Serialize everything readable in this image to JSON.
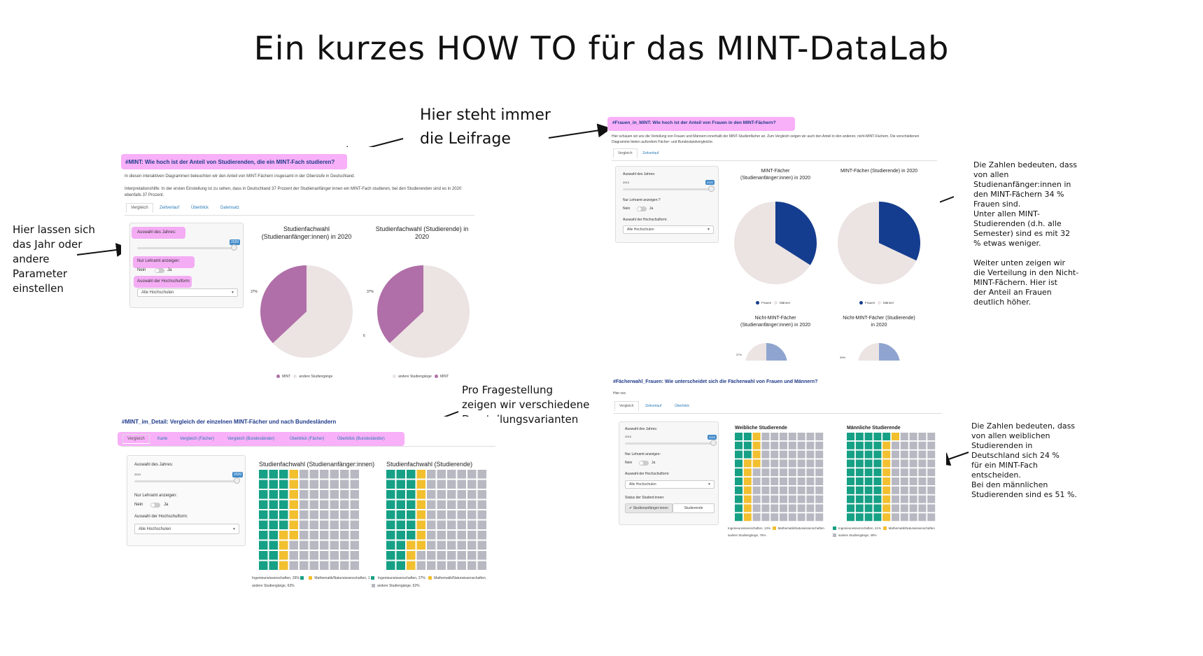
{
  "title": "Ein kurzes HOW TO für das MINT-DataLab",
  "notes": {
    "leitfrage": "Hier steht immer\ndie Leifrage",
    "parameter": "Hier lassen sich\ndas Jahr oder\nandere\nParameter\neinstellen",
    "varianten": "Pro Fragestellung\nzeigen wir verschiedene\nDarstellungsvarianten",
    "frauen": "Die Zahlen bedeuten, dass\nvon allen\nStudienanfänger:innen in\nden MINT-Fächern 34 %\nFrauen sind.\nUnter allen MINT-\nStudierenden (d.h. alle\nSemester) sind es mit 32\n% etwas weniger.\n\nWeiter unten zeigen wir\ndie Verteilung in den Nicht-\nMINT-Fächern. Hier ist\nder Anteil an Frauen\ndeutlich höher.",
    "faecherwahl": "Die Zahlen bedeuten, dass\nvon allen weiblichen\nStudierenden in\nDeutschland sich 24 %\nfür ein MINT-Fach\nentscheiden.\nBei den männlichen\nStudierenden sind es 51 %."
  },
  "panel1": {
    "question": "#MINT: Wie hoch ist der Anteil von Studierenden, die ein MINT-Fach studieren?",
    "intro": "In diesen interaktiven Diagrammen beleuchten wir den Anteil von MINT-Fächern insgesamt in der Oberstufe in Deutschland.",
    "help": "Interpretationshilfe: In der ersten Einstellung ist zu sehen, dass in Deutschland 37 Prozent der Studienanfänger:innen ein MINT-Fach studieren, bei den Studierenden sind es in 2020 ebenfalls 37 Prozent.",
    "tabs": [
      "Vergleich",
      "Zeitverlauf",
      "Überblick",
      "Datensatz"
    ],
    "year_label": "Auswahl des Jahres:",
    "year_min": "2013",
    "year_value": "2020",
    "lehramt_label": "Nur Lehramt anzeigen:",
    "no": "Nein",
    "yes": "Ja",
    "hs_label": "Auswahl der Hochschulform",
    "hs_value": "Alle Hochschulen",
    "chart1_title": "Studienfachwahl\n(Studienanfänger:innen) in 2020",
    "chart2_title": "Studienfachwahl (Studierende) in\n2020",
    "pct": "37%",
    "small_val": "6",
    "legend_mint": "MINT",
    "legend_andere": "andere Studiengänge"
  },
  "panel2": {
    "question": "#Frauen_in_MINT: Wie hoch ist der Anteil von Frauen in den MINT-Fächern?",
    "intro": "Hier schauen wir uns die Verteilung von Frauen und Männern innerhalb der MINT-Studienfächer an. Zum Vergleich zeigen wir auch den Anteil in den anderen, nicht-MINT-Fächern. Die verschiedenen Diagramme bieten außerdem Fächer- und Bundeslandvergleiche.",
    "tabs": [
      "Vergleich",
      "Zeitverlauf"
    ],
    "year_label": "Auswahl des Jahres:",
    "year_min": "2013",
    "year_value": "2020",
    "lehramt_label": "Nur Lehramt anzeigen:?",
    "no": "Nein",
    "yes": "Ja",
    "hs_label": "Auswahl der Hochschulform:",
    "hs_value": "Alle Hochschulen",
    "c1": "MINT-Fächer\n(Studienanfänger:innen) in 2020",
    "c2": "MINT-Fächer (Studierende) in 2020",
    "c3": "Nicht-MINT-Fächer\n(Studienanfänger:innen) in 2020",
    "c4": "Nicht-MINT-Fächer (Studierende)\nin 2020",
    "legend_frauen": "Frauen",
    "legend_maenner": "Männer",
    "p3": "37%",
    "p4": "39%"
  },
  "panel3": {
    "question": "#MINT_im_Detail: Vergleich der einzelnen MINT-Fächer und nach Bundesländern",
    "tabs": [
      "Vergleich",
      "Karte",
      "Vergleich (Fächer)",
      "Vergleich (Bundesländer)",
      "Überblick (Fächer)",
      "Überblick (Bundesländer)"
    ],
    "year_label": "Auswahl des Jahres:",
    "year_min": "2013",
    "year_value": "2020",
    "lehramt_label": "Nur Lehramt anzeigen:",
    "no": "Nein",
    "yes": "Ja",
    "hs_label": "Auswahl der Hochschulform:",
    "hs_value": "Alle Hochschulen",
    "w1_title": "Studienfachwahl (Studienanfänger:innen)",
    "w2_title": "Studienfachwahl (Studierende)",
    "w1_leg": [
      "Ingenieurwissenschaften, 26%",
      "Mathematik/Naturwissenschaften, 1",
      "andere Studiengänge, 63%"
    ],
    "w2_leg": [
      "Ingenieurwissenschaften, 27%",
      "Mathematik/Naturwissenschaften,",
      "andere Studiengänge, 62%"
    ]
  },
  "panel4": {
    "question": "#Fächerwahl_Frauen: Wie unterscheidet sich die Fächerwahl von Frauen und Männern?",
    "intro": "Hier xxx",
    "tabs": [
      "Vergleich",
      "Zeitverlauf",
      "Überblick"
    ],
    "year_label": "Auswahl des Jahres:",
    "year_min": "2013",
    "year_value": "2020",
    "lehramt_label": "Nur Lehramt anzeigen:",
    "no": "Nein",
    "yes": "Ja",
    "hs_label": "Auswahl der Hochschulform:",
    "hs_value": "Alle Hochschulen",
    "status_label": "Status der Student:innen:",
    "status_a": "✔ Studienanfänger:innen",
    "status_b": "Studierende",
    "w1_title": "Weibliche Studierende",
    "w2_title": "Männliche Studierende",
    "w1_leg": [
      "Ingenieurwissenschaften, 13%",
      "Mathematik/Naturwissenschaften",
      "andere Studiengänge, 76%"
    ],
    "w2_leg": [
      "Ingenieurwissenschaften, 41%",
      "Mathematik/Naturwissenschaften",
      "andere Studiengänge, 49%"
    ]
  },
  "colors": {
    "mint_purple": "#b06fa8",
    "andere": "#ece3e3",
    "frauen_blue": "#143d8f",
    "nicht_blue": "#8fa5d0",
    "green": "#16a085",
    "yellow": "#f2bf2f",
    "grey": "#b8b8c2",
    "highlight": "#f050f0"
  },
  "chart_data": [
    {
      "type": "pie",
      "title": "Studienfachwahl (Studienanfänger:innen) in 2020",
      "categories": [
        "MINT",
        "andere Studiengänge"
      ],
      "values": [
        37,
        63
      ]
    },
    {
      "type": "pie",
      "title": "Studienfachwahl (Studierende) in 2020",
      "categories": [
        "MINT",
        "andere Studiengänge"
      ],
      "values": [
        37,
        63
      ]
    },
    {
      "type": "pie",
      "title": "MINT-Fächer (Studienanfänger:innen) in 2020",
      "categories": [
        "Frauen",
        "Männer"
      ],
      "values": [
        34,
        66
      ]
    },
    {
      "type": "pie",
      "title": "MINT-Fächer (Studierende) in 2020",
      "categories": [
        "Frauen",
        "Männer"
      ],
      "values": [
        32,
        68
      ]
    },
    {
      "type": "waffle",
      "title": "Studienfachwahl (Studienanfänger:innen)",
      "categories": [
        "Ingenieurwissenschaften",
        "Mathematik/Naturwissenschaften",
        "andere Studiengänge"
      ],
      "values": [
        26,
        11,
        63
      ]
    },
    {
      "type": "waffle",
      "title": "Studienfachwahl (Studierende)",
      "categories": [
        "Ingenieurwissenschaften",
        "Mathematik/Naturwissenschaften",
        "andere Studiengänge"
      ],
      "values": [
        27,
        11,
        62
      ]
    },
    {
      "type": "waffle",
      "title": "Weibliche Studierende",
      "categories": [
        "Ingenieurwissenschaften",
        "Mathematik/Naturwissenschaften",
        "andere Studiengänge"
      ],
      "values": [
        13,
        11,
        76
      ]
    },
    {
      "type": "waffle",
      "title": "Männliche Studierende",
      "categories": [
        "Ingenieurwissenschaften",
        "Mathematik/Naturwissenschaften",
        "andere Studiengänge"
      ],
      "values": [
        41,
        10,
        49
      ]
    }
  ]
}
